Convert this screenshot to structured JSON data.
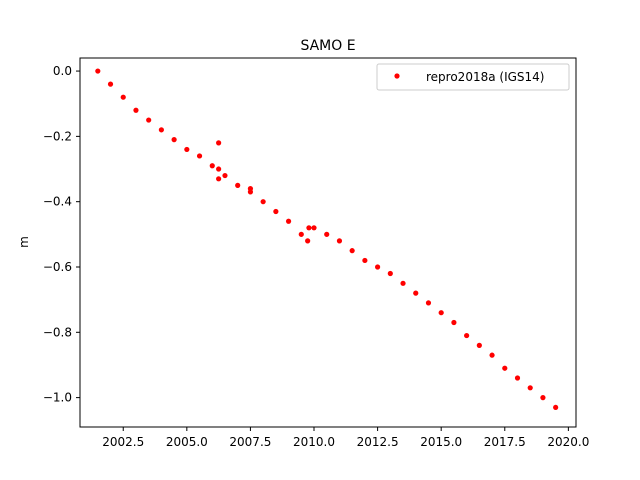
{
  "chart_data": {
    "type": "scatter",
    "title": "SAMO E",
    "xlabel": "",
    "ylabel": "m",
    "xlim": [
      2000.8,
      2020.3
    ],
    "ylim": [
      -1.09,
      0.04
    ],
    "xticks": [
      2002.5,
      2005.0,
      2007.5,
      2010.0,
      2012.5,
      2015.0,
      2017.5,
      2020.0
    ],
    "xtick_labels": [
      "2002.5",
      "2005.0",
      "2007.5",
      "2010.0",
      "2012.5",
      "2015.0",
      "2017.5",
      "2020.0"
    ],
    "yticks": [
      0.0,
      -0.2,
      -0.4,
      -0.6,
      -0.8,
      -1.0
    ],
    "ytick_labels": [
      "0.0",
      "−0.2",
      "−0.4",
      "−0.6",
      "−0.8",
      "−1.0"
    ],
    "grid": false,
    "legend": {
      "placement": "top-right",
      "entries": [
        "repro2018a (IGS14)"
      ]
    },
    "series": [
      {
        "name": "repro2018a (IGS14)",
        "color": "#ff0000",
        "x": [
          2001.5,
          2002.0,
          2002.5,
          2003.0,
          2003.5,
          2004.0,
          2004.5,
          2005.0,
          2005.5,
          2006.0,
          2006.25,
          2006.5,
          2007.0,
          2007.5,
          2008.0,
          2008.5,
          2009.0,
          2009.5,
          2009.75,
          2009.8,
          2010.0,
          2010.5,
          2011.0,
          2011.5,
          2012.0,
          2012.5,
          2013.0,
          2013.5,
          2014.0,
          2014.5,
          2015.0,
          2015.5,
          2016.0,
          2016.5,
          2017.0,
          2017.5,
          2018.0,
          2018.5,
          2019.0,
          2019.5,
          2006.25,
          2006.25,
          2007.5
        ],
        "y": [
          0.0,
          -0.04,
          -0.08,
          -0.12,
          -0.15,
          -0.18,
          -0.21,
          -0.24,
          -0.26,
          -0.29,
          -0.3,
          -0.32,
          -0.35,
          -0.37,
          -0.4,
          -0.43,
          -0.46,
          -0.5,
          -0.52,
          -0.48,
          -0.48,
          -0.5,
          -0.52,
          -0.55,
          -0.58,
          -0.6,
          -0.62,
          -0.65,
          -0.68,
          -0.71,
          -0.74,
          -0.77,
          -0.81,
          -0.84,
          -0.87,
          -0.91,
          -0.94,
          -0.97,
          -1.0,
          -1.03,
          -0.22,
          -0.33,
          -0.36
        ]
      }
    ]
  }
}
